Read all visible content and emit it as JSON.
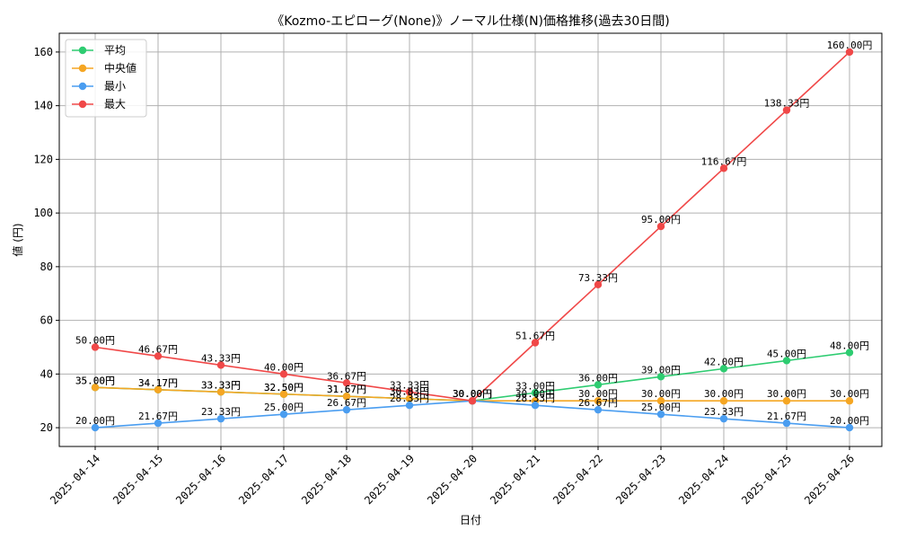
{
  "chart_data": {
    "type": "line",
    "title": "《Kozmo-エピローグ(None)》ノーマル仕様(N)価格推移(過去30日間)",
    "xlabel": "日付",
    "ylabel": "値 (円)",
    "ylim": [
      13,
      167
    ],
    "yticks": [
      20,
      40,
      60,
      80,
      100,
      120,
      140,
      160
    ],
    "grid": true,
    "legend_position": "top-left",
    "label_suffix": "円",
    "categories": [
      "2025-04-14",
      "2025-04-15",
      "2025-04-16",
      "2025-04-17",
      "2025-04-18",
      "2025-04-19",
      "2025-04-20",
      "2025-04-21",
      "2025-04-22",
      "2025-04-23",
      "2025-04-24",
      "2025-04-25",
      "2025-04-26"
    ],
    "series": [
      {
        "name": "平均",
        "color": "#2ecc71",
        "values": [
          35.0,
          34.17,
          33.33,
          32.5,
          31.67,
          30.83,
          30.0,
          33.0,
          36.0,
          39.0,
          42.0,
          45.0,
          48.0
        ]
      },
      {
        "name": "中央値",
        "color": "#f5a623",
        "values": [
          35.0,
          34.17,
          33.33,
          32.5,
          31.67,
          30.83,
          30.0,
          30.0,
          30.0,
          30.0,
          30.0,
          30.0,
          30.0
        ]
      },
      {
        "name": "最小",
        "color": "#4a9df0",
        "values": [
          20.0,
          21.67,
          23.33,
          25.0,
          26.67,
          28.33,
          30.0,
          28.33,
          26.67,
          25.0,
          23.33,
          21.67,
          20.0
        ]
      },
      {
        "name": "最大",
        "color": "#f04848",
        "values": [
          50.0,
          46.67,
          43.33,
          40.0,
          36.67,
          33.33,
          30.0,
          51.67,
          73.33,
          95.0,
          116.67,
          138.33,
          160.0
        ]
      }
    ]
  }
}
